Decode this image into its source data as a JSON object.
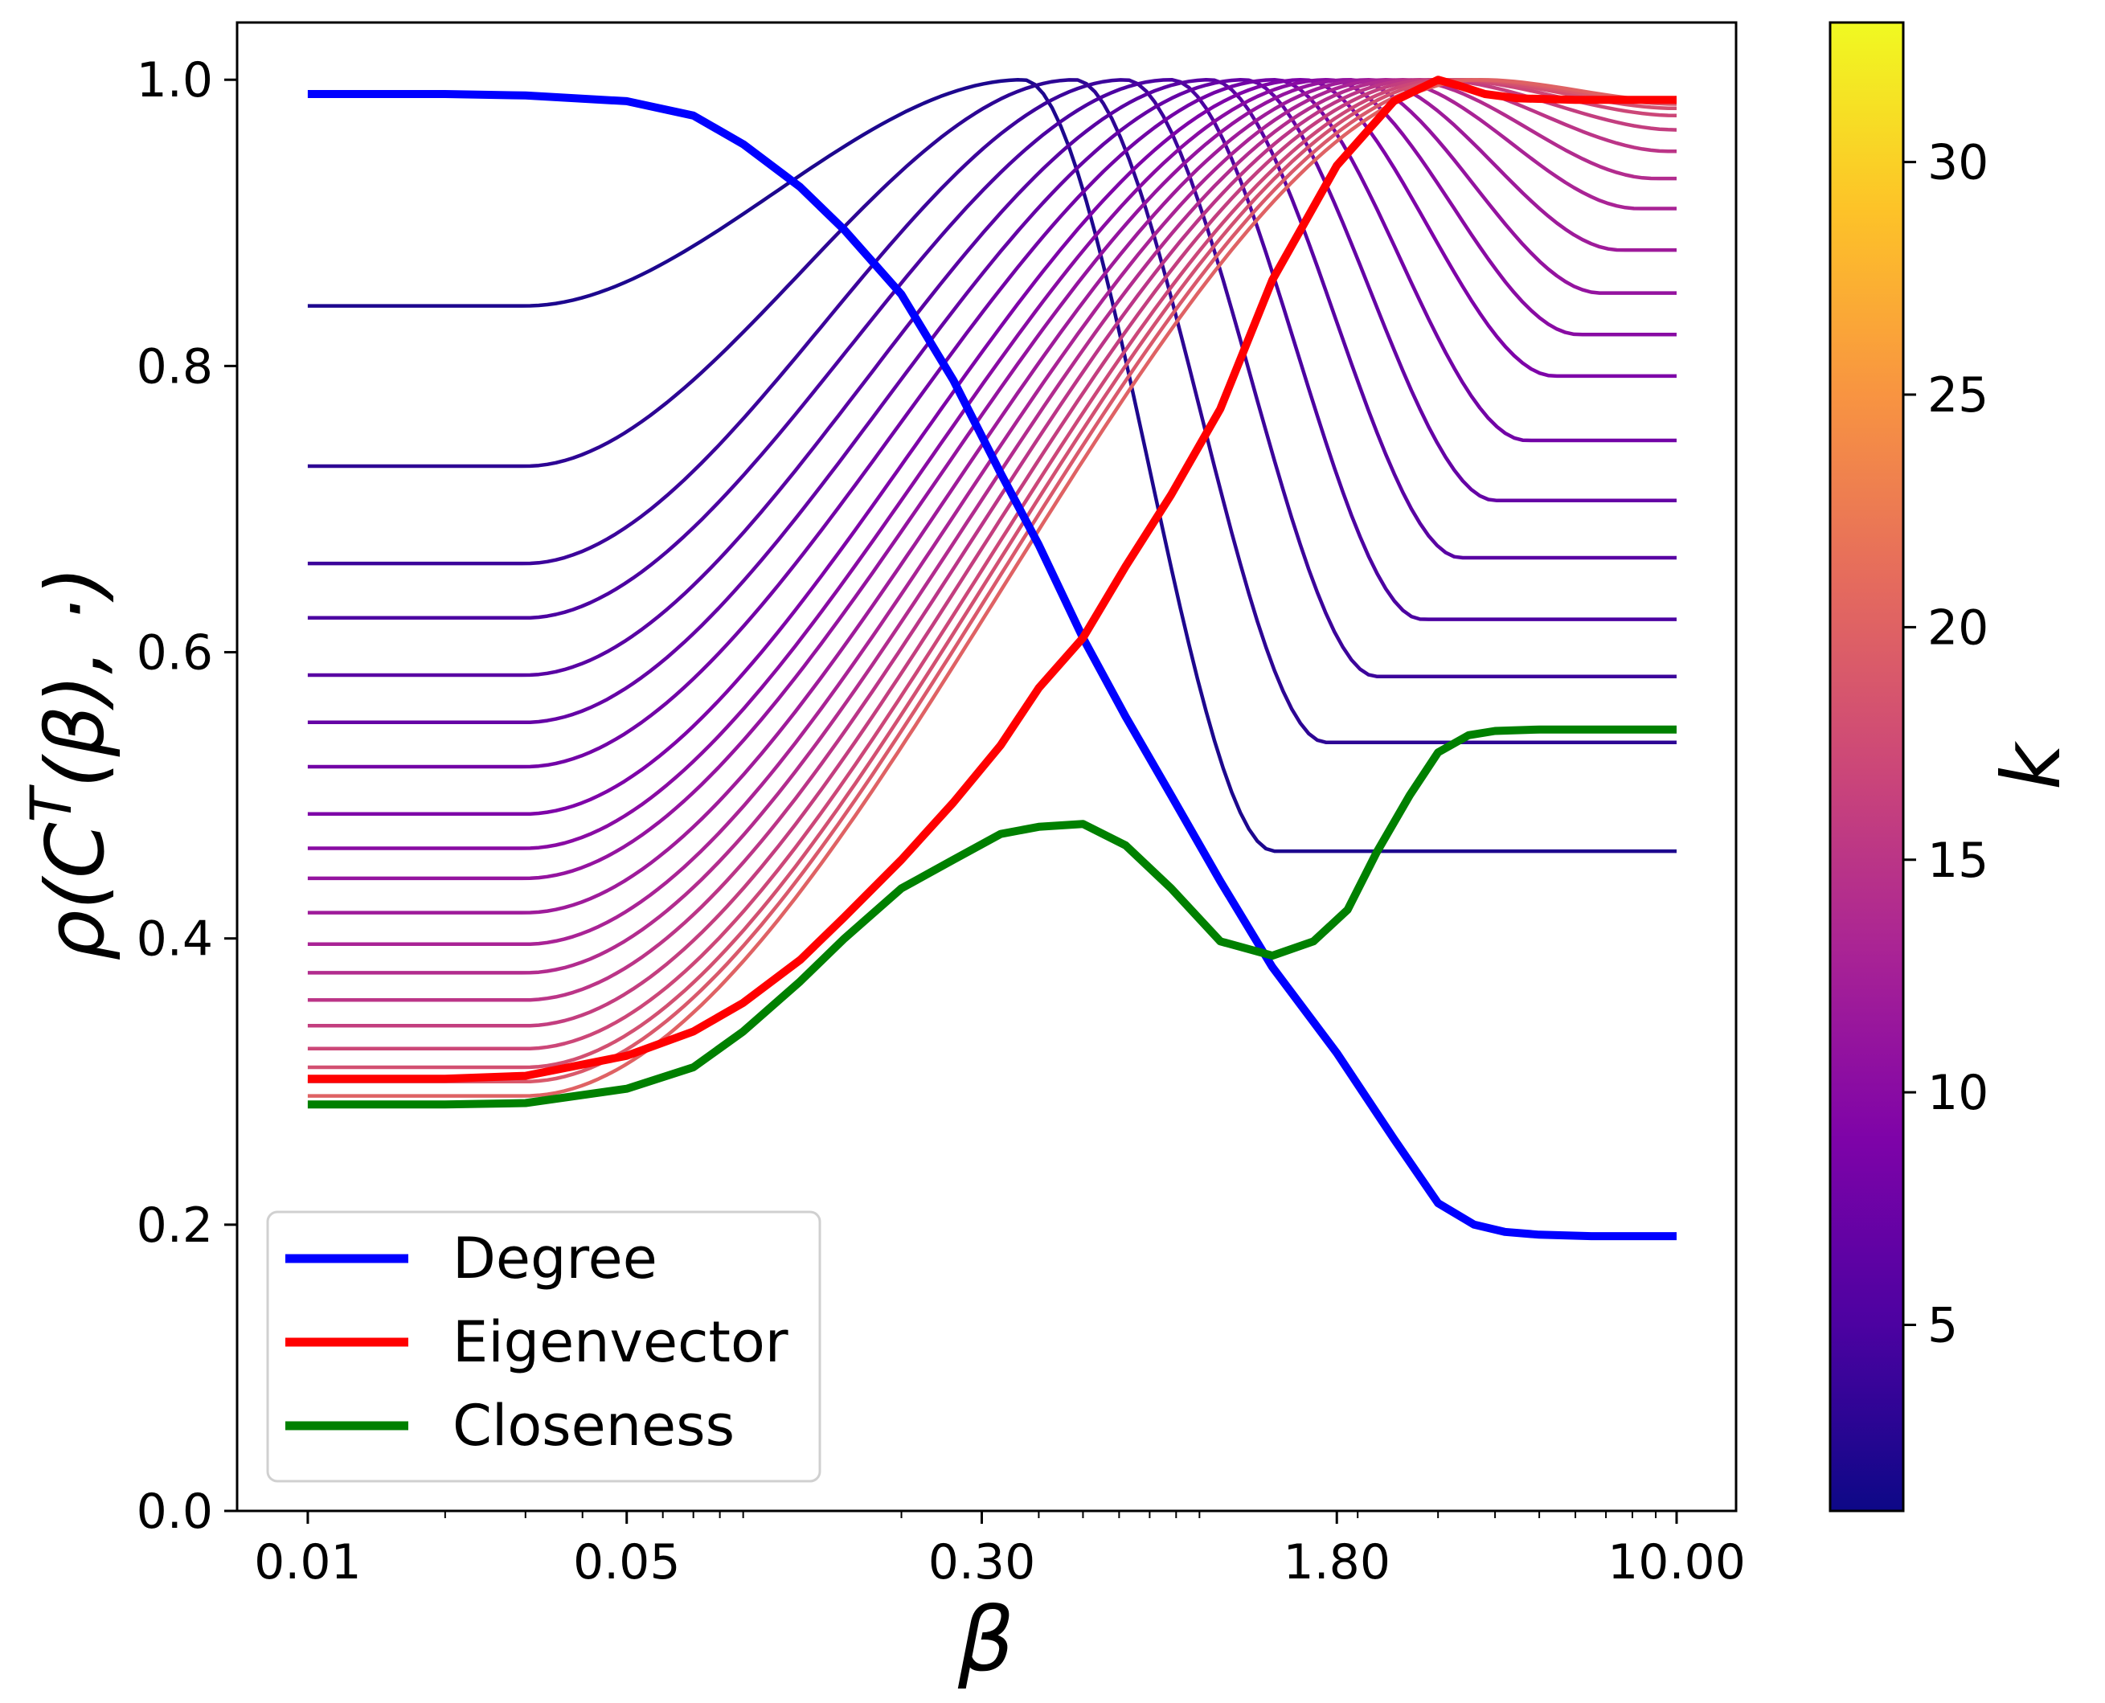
{
  "chart_data": {
    "type": "line",
    "xscale": "log",
    "xlabel": "β",
    "ylabel": "ρ(C",
    "ylabel_sup": "T",
    "ylabel_tail": "(β), ·)",
    "xlim": [
      0.007,
      13.5
    ],
    "ylim": [
      0.0,
      1.04
    ],
    "x_ticks": [
      0.01,
      0.05,
      0.3,
      1.8,
      10.0
    ],
    "x_tick_labels": [
      "0.01",
      "0.05",
      "0.30",
      "1.80",
      "10.00"
    ],
    "y_ticks": [
      0.0,
      0.2,
      0.4,
      0.6,
      0.8,
      1.0
    ],
    "y_tick_labels": [
      "0.0",
      "0.2",
      "0.4",
      "0.6",
      "0.8",
      "1.0"
    ],
    "x_range": [
      0.01,
      10.0
    ],
    "colorbar": {
      "label": "k",
      "min": 1,
      "max": 33,
      "ticks": [
        5,
        10,
        15,
        20,
        25,
        30
      ],
      "tick_labels": [
        "5",
        "10",
        "15",
        "20",
        "25",
        "30"
      ],
      "colormap": "plasma"
    },
    "k_family": {
      "description": "One curve per k; value at small beta (plateau), peak near 1.0, value at large beta",
      "k": [
        2,
        3,
        4,
        5,
        6,
        7,
        8,
        9,
        10,
        11,
        12,
        13,
        14,
        15,
        16,
        17,
        18,
        19,
        20
      ],
      "start": [
        0.842,
        0.73,
        0.662,
        0.624,
        0.584,
        0.551,
        0.52,
        0.487,
        0.463,
        0.442,
        0.418,
        0.396,
        0.376,
        0.357,
        0.339,
        0.323,
        0.31,
        0.3,
        0.29
      ],
      "peak_beta": [
        0.37,
        0.48,
        0.62,
        0.78,
        0.95,
        1.13,
        1.32,
        1.52,
        1.72,
        1.92,
        2.12,
        2.32,
        2.52,
        2.72,
        2.92,
        3.12,
        3.3,
        3.5,
        3.7
      ],
      "end": [
        0.461,
        0.537,
        0.583,
        0.623,
        0.666,
        0.706,
        0.748,
        0.793,
        0.822,
        0.851,
        0.881,
        0.91,
        0.931,
        0.95,
        0.965,
        0.975,
        0.98,
        0.983,
        0.985
      ]
    },
    "series": [
      {
        "name": "Degree",
        "color": "#0000ff",
        "x": [
          0.01,
          0.02,
          0.03,
          0.05,
          0.07,
          0.09,
          0.12,
          0.15,
          0.2,
          0.26,
          0.33,
          0.4,
          0.5,
          0.62,
          0.78,
          1.0,
          1.3,
          1.8,
          2.4,
          3.0,
          3.6,
          4.2,
          5.0,
          6.5,
          10.0
        ],
        "y": [
          0.99,
          0.99,
          0.989,
          0.985,
          0.975,
          0.955,
          0.925,
          0.895,
          0.85,
          0.79,
          0.725,
          0.675,
          0.61,
          0.555,
          0.5,
          0.44,
          0.38,
          0.32,
          0.26,
          0.215,
          0.2,
          0.195,
          0.193,
          0.192,
          0.192
        ]
      },
      {
        "name": "Eigenvector",
        "color": "#ff0000",
        "x": [
          0.01,
          0.02,
          0.03,
          0.05,
          0.07,
          0.09,
          0.12,
          0.15,
          0.2,
          0.26,
          0.33,
          0.4,
          0.5,
          0.62,
          0.78,
          1.0,
          1.3,
          1.8,
          2.4,
          3.0,
          3.4,
          3.8,
          4.5,
          6.0,
          10.0
        ],
        "y": [
          0.302,
          0.302,
          0.304,
          0.318,
          0.335,
          0.355,
          0.385,
          0.415,
          0.455,
          0.495,
          0.535,
          0.575,
          0.61,
          0.66,
          0.71,
          0.77,
          0.86,
          0.94,
          0.985,
          1.0,
          0.995,
          0.99,
          0.987,
          0.986,
          0.986
        ]
      },
      {
        "name": "Closeness",
        "color": "#008000",
        "x": [
          0.01,
          0.02,
          0.03,
          0.05,
          0.07,
          0.09,
          0.12,
          0.15,
          0.2,
          0.26,
          0.33,
          0.4,
          0.5,
          0.62,
          0.78,
          1.0,
          1.3,
          1.6,
          1.9,
          2.2,
          2.6,
          3.0,
          3.5,
          4.0,
          5.0,
          10.0
        ],
        "y": [
          0.284,
          0.284,
          0.285,
          0.295,
          0.31,
          0.335,
          0.37,
          0.4,
          0.435,
          0.455,
          0.473,
          0.478,
          0.48,
          0.465,
          0.435,
          0.398,
          0.388,
          0.398,
          0.42,
          0.46,
          0.5,
          0.53,
          0.542,
          0.545,
          0.546,
          0.546
        ]
      }
    ],
    "legend": {
      "location": "lower-left",
      "entries": [
        "Degree",
        "Eigenvector",
        "Closeness"
      ]
    }
  }
}
